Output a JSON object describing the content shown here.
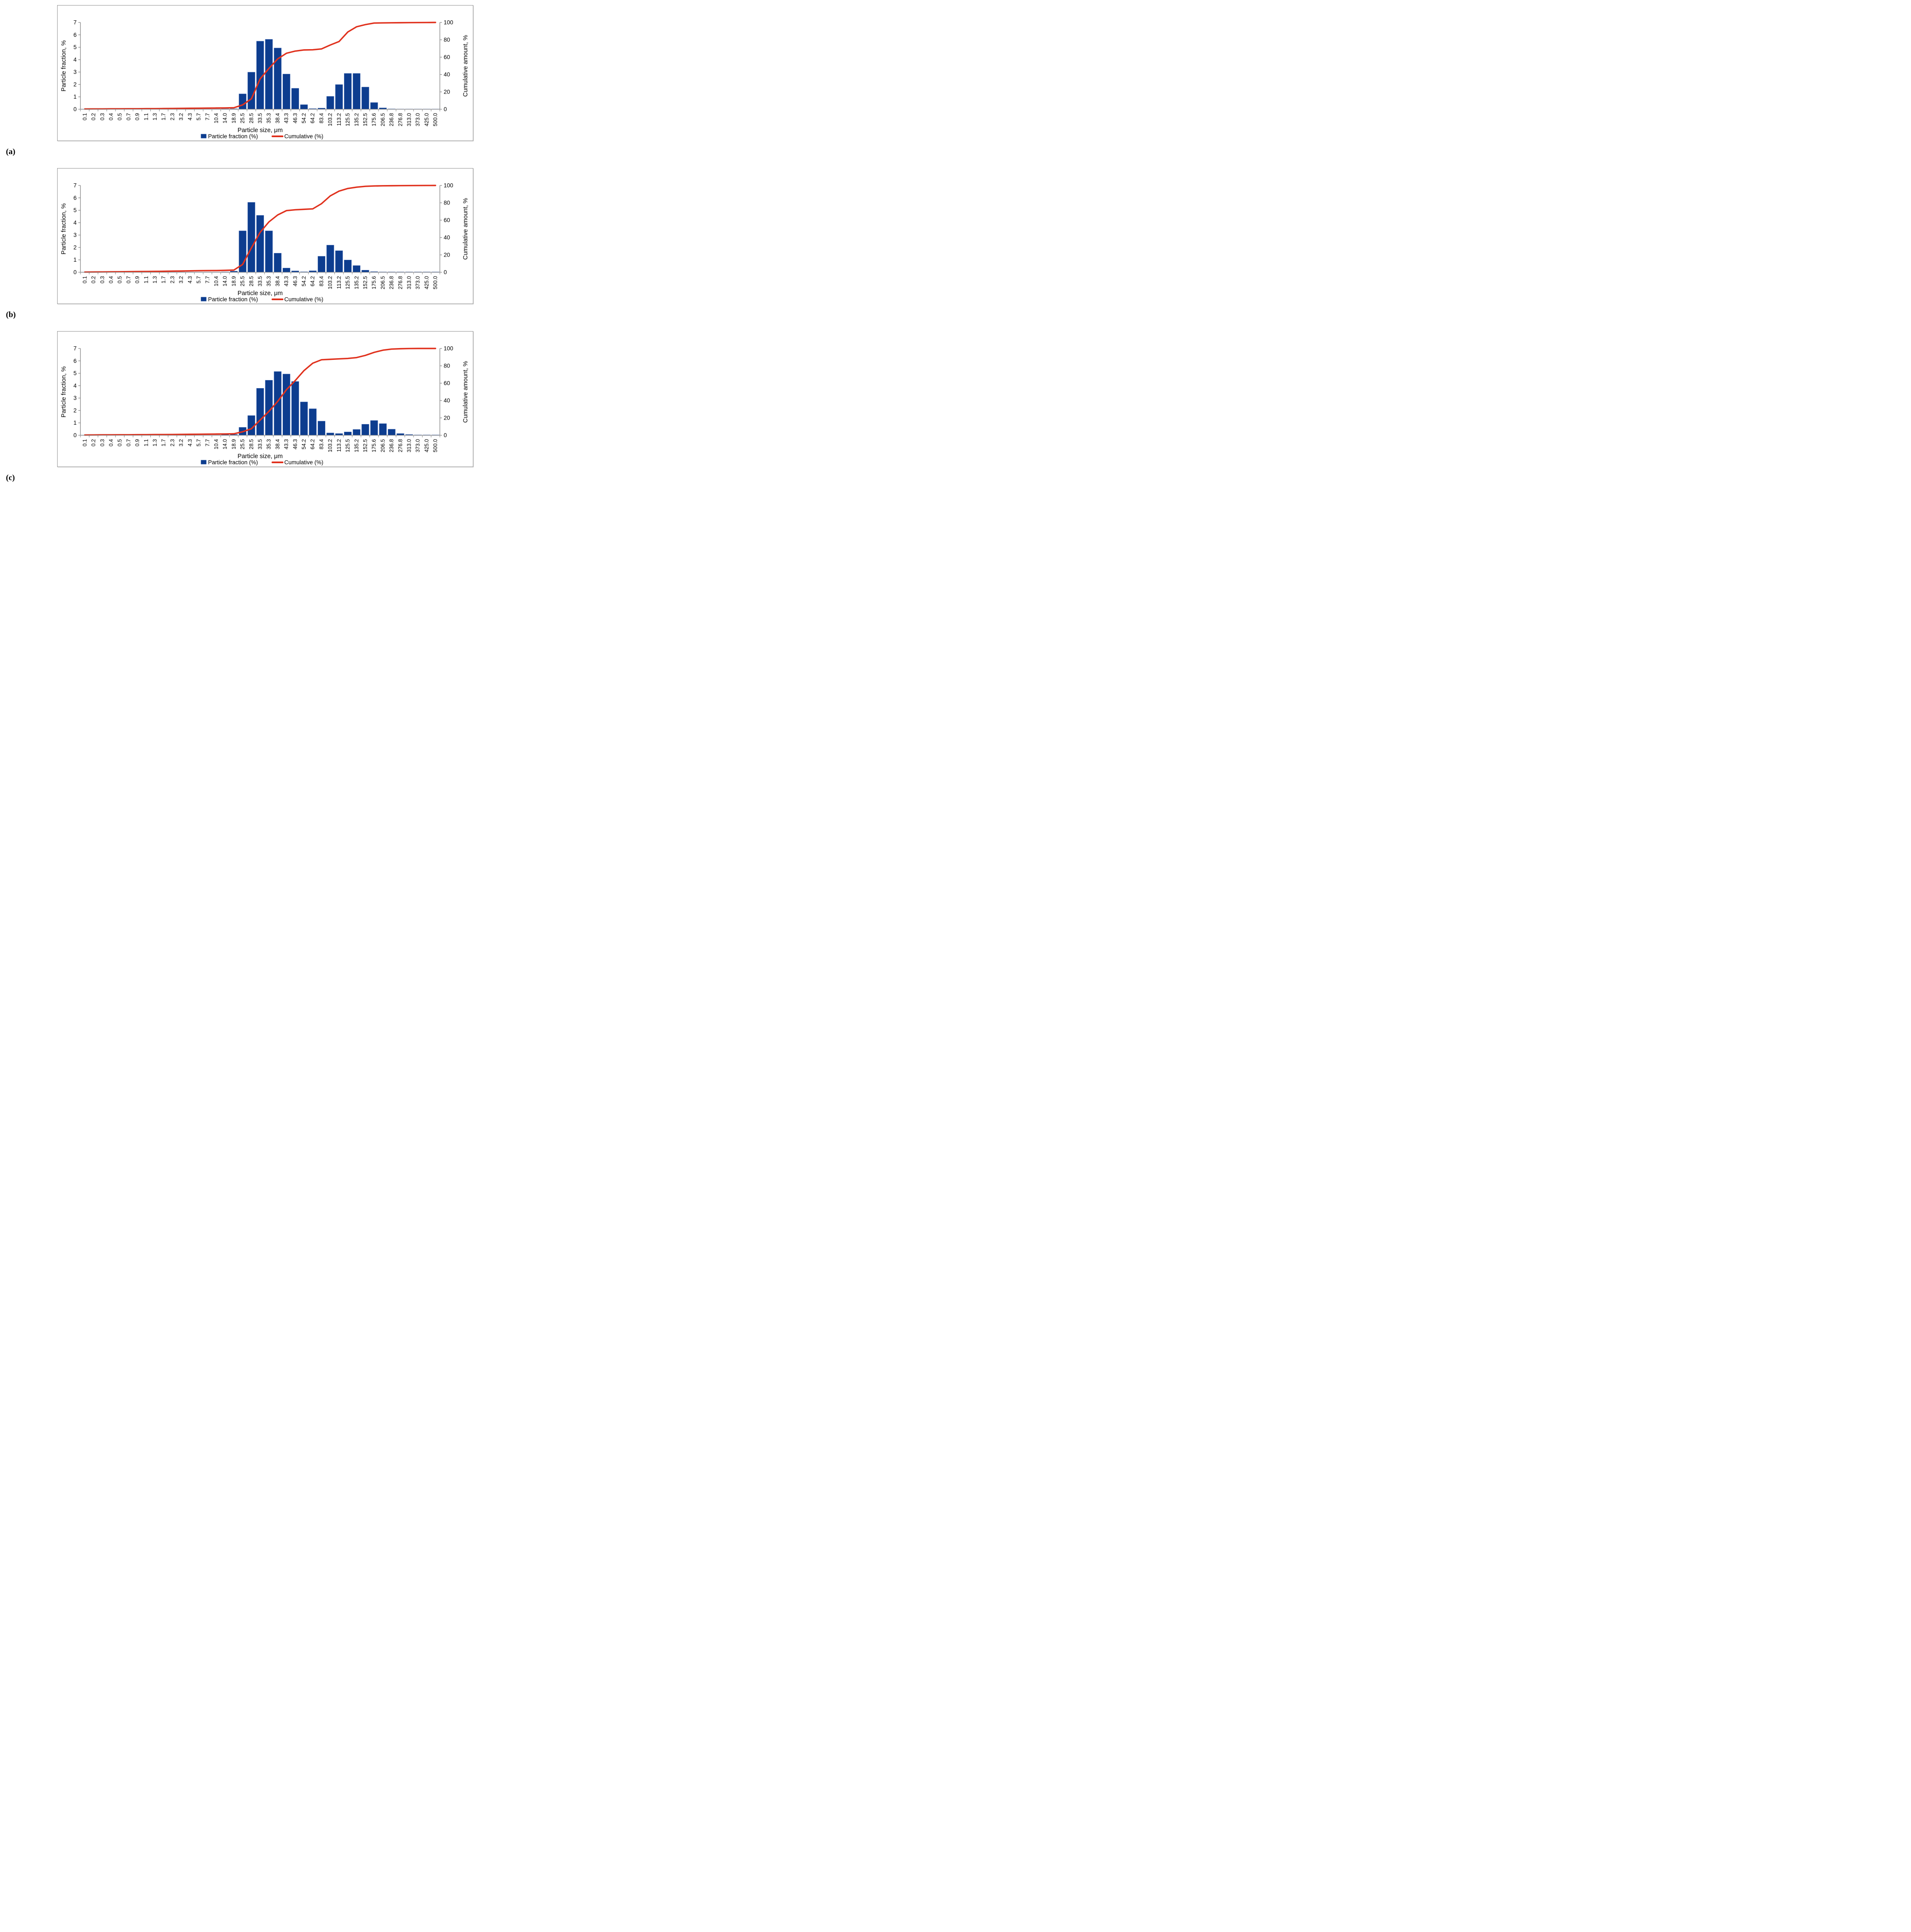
{
  "figure": {
    "x_axis_title": "Particle size, μm",
    "left_axis": {
      "title": "Particle fraction, %",
      "ticks": [
        0,
        1,
        2,
        3,
        4,
        5,
        6,
        7
      ],
      "max": 7
    },
    "right_axis": {
      "title": "Cumulative amount, %",
      "ticks": [
        0,
        20,
        40,
        60,
        80,
        100
      ],
      "max": 100
    },
    "legend": {
      "bar_label": "Particle fraction (%)",
      "line_label": "Cumulative (%)"
    },
    "colors": {
      "bar": "#0d3d8f",
      "bar_outline": "#b9c8ea",
      "line": "#e0311d",
      "axis": "#808080",
      "border": "#8f8f8f",
      "text": "#000000"
    },
    "panels": [
      {
        "label": "(a)"
      },
      {
        "label": "(b)"
      },
      {
        "label": "(c)"
      }
    ]
  },
  "chart_data": [
    {
      "type": "bar",
      "panel": "(a)",
      "title": "",
      "xlabel": "Particle size, μm",
      "ylabel_left": "Particle fraction, %",
      "ylabel_right": "Cumulative amount, %",
      "left_ylim": [
        0,
        7
      ],
      "right_ylim": [
        0,
        100
      ],
      "grid": false,
      "legend_position": "bottom",
      "categories": [
        "0.1",
        "0.2",
        "0.3",
        "0.4",
        "0.5",
        "0.7",
        "0.9",
        "1.1",
        "1.3",
        "1.7",
        "2.3",
        "3.2",
        "4.3",
        "5.7",
        "7.7",
        "10.4",
        "14.0",
        "18.9",
        "25.5",
        "28.5",
        "33.5",
        "35.3",
        "38.4",
        "43.3",
        "46.3",
        "54.2",
        "64.2",
        "83.4",
        "103.2",
        "113.2",
        "125.5",
        "135.2",
        "152.5",
        "175.6",
        "206.5",
        "236.8",
        "276.8",
        "313.0",
        "373.0",
        "425.0",
        "500.0"
      ],
      "series": [
        {
          "name": "Particle fraction (%)",
          "kind": "bar",
          "axis": "left",
          "values": [
            0.02,
            0.02,
            0.02,
            0.02,
            0.02,
            0.02,
            0.02,
            0.02,
            0.02,
            0.02,
            0.03,
            0.03,
            0.03,
            0.03,
            0.03,
            0.03,
            0.04,
            0.05,
            1.25,
            3.0,
            5.5,
            5.65,
            4.95,
            2.85,
            1.7,
            0.38,
            0.06,
            0.1,
            1.05,
            2.0,
            2.9,
            2.9,
            1.8,
            0.55,
            0.12,
            0.04,
            0.03,
            0.03,
            0.03,
            0.03,
            0.03
          ]
        },
        {
          "name": "Cumulative (%)",
          "kind": "line",
          "axis": "right",
          "values": [
            0.3,
            0.4,
            0.4,
            0.5,
            0.5,
            0.6,
            0.6,
            0.7,
            0.7,
            0.8,
            0.9,
            1.0,
            1.1,
            1.2,
            1.3,
            1.4,
            1.5,
            1.7,
            5,
            12,
            35,
            47,
            58,
            64.5,
            67,
            68.3,
            68.5,
            69.5,
            74,
            78,
            89,
            95,
            97.5,
            99.3,
            99.5,
            99.6,
            99.7,
            99.8,
            99.85,
            99.9,
            100
          ]
        }
      ]
    },
    {
      "type": "bar",
      "panel": "(b)",
      "title": "",
      "xlabel": "Particle size, μm",
      "ylabel_left": "Particle fraction, %",
      "ylabel_right": "Cumulative amount, %",
      "left_ylim": [
        0,
        7
      ],
      "right_ylim": [
        0,
        100
      ],
      "grid": false,
      "legend_position": "bottom",
      "categories": [
        "0.1",
        "0.2",
        "0.3",
        "0.4",
        "0.5",
        "0.7",
        "0.9",
        "1.1",
        "1.3",
        "1.7",
        "2.3",
        "3.2",
        "4.3",
        "5.7",
        "7.7",
        "10.4",
        "14.0",
        "18.9",
        "25.5",
        "28.5",
        "33.5",
        "35.3",
        "38.4",
        "43.3",
        "46.3",
        "54.2",
        "64.2",
        "83.4",
        "103.2",
        "113.2",
        "125.5",
        "135.2",
        "152.5",
        "175.6",
        "206.5",
        "236.8",
        "276.8",
        "313.0",
        "373.0",
        "425.0",
        "500.0"
      ],
      "series": [
        {
          "name": "Particle fraction (%)",
          "kind": "bar",
          "axis": "left",
          "values": [
            0.02,
            0.02,
            0.02,
            0.02,
            0.02,
            0.02,
            0.02,
            0.02,
            0.02,
            0.02,
            0.03,
            0.03,
            0.03,
            0.03,
            0.03,
            0.03,
            0.04,
            0.1,
            3.35,
            5.65,
            4.6,
            3.35,
            1.55,
            0.35,
            0.12,
            0.05,
            0.13,
            1.3,
            2.2,
            1.75,
            1.0,
            0.55,
            0.18,
            0.06,
            0.04,
            0.04,
            0.04,
            0.04,
            0.04,
            0.04,
            0.04
          ]
        },
        {
          "name": "Cumulative (%)",
          "kind": "line",
          "axis": "right",
          "values": [
            0.2,
            0.3,
            0.4,
            0.5,
            0.6,
            0.7,
            0.8,
            0.9,
            1.0,
            1.1,
            1.3,
            1.4,
            1.6,
            1.8,
            1.9,
            2.0,
            2.2,
            2.5,
            9,
            28,
            46,
            58,
            66,
            71,
            72,
            72.5,
            73,
            79,
            88,
            93.5,
            96.5,
            98,
            99,
            99.4,
            99.6,
            99.7,
            99.8,
            99.85,
            99.9,
            99.95,
            100
          ]
        }
      ]
    },
    {
      "type": "bar",
      "panel": "(c)",
      "title": "",
      "xlabel": "Particle size, μm",
      "ylabel_left": "Particle fraction, %",
      "ylabel_right": "Cumulative amount, %",
      "left_ylim": [
        0,
        7
      ],
      "right_ylim": [
        0,
        100
      ],
      "grid": false,
      "legend_position": "bottom",
      "categories": [
        "0.1",
        "0.2",
        "0.3",
        "0.4",
        "0.5",
        "0.7",
        "0.9",
        "1.1",
        "1.3",
        "1.7",
        "2.3",
        "3.2",
        "4.3",
        "5.7",
        "7.7",
        "10.4",
        "14.0",
        "18.9",
        "25.5",
        "28.5",
        "33.5",
        "35.3",
        "38.4",
        "43.3",
        "46.3",
        "54.2",
        "64.2",
        "83.4",
        "103.2",
        "113.2",
        "125.5",
        "135.2",
        "152.5",
        "175.6",
        "206.5",
        "236.8",
        "276.8",
        "313.0",
        "373.0",
        "425.0",
        "500.0"
      ],
      "series": [
        {
          "name": "Particle fraction (%)",
          "kind": "bar",
          "axis": "left",
          "values": [
            0.02,
            0.02,
            0.02,
            0.02,
            0.02,
            0.02,
            0.02,
            0.02,
            0.02,
            0.02,
            0.03,
            0.03,
            0.03,
            0.03,
            0.03,
            0.03,
            0.06,
            0.08,
            0.65,
            1.6,
            3.8,
            4.45,
            5.15,
            4.95,
            4.35,
            2.7,
            2.15,
            1.15,
            0.2,
            0.15,
            0.28,
            0.48,
            0.9,
            1.2,
            0.95,
            0.5,
            0.15,
            0.07,
            0.04,
            0.04,
            0.04
          ]
        },
        {
          "name": "Cumulative (%)",
          "kind": "line",
          "axis": "right",
          "values": [
            0.3,
            0.4,
            0.5,
            0.5,
            0.6,
            0.6,
            0.7,
            0.7,
            0.8,
            0.8,
            0.9,
            1.0,
            1.1,
            1.2,
            1.3,
            1.4,
            1.5,
            1.7,
            4,
            7.5,
            17.5,
            27.5,
            39,
            52.5,
            63,
            74.5,
            83,
            87,
            87.5,
            88,
            88.5,
            89.5,
            92,
            95.5,
            98,
            99.3,
            99.7,
            99.9,
            100,
            100,
            100
          ]
        }
      ]
    }
  ]
}
